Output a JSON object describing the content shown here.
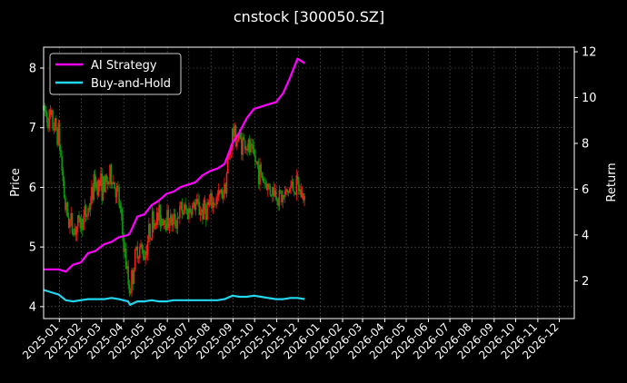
{
  "chart_data": {
    "type": "line",
    "title": "cnstock [300050.SZ]",
    "xlabel": "",
    "ylabel": "Price",
    "ylabel_right": "Return",
    "ylim": [
      3.8,
      8.35
    ],
    "ylim_right": [
      0.35,
      12.2
    ],
    "yticks": [
      4,
      5,
      6,
      7,
      8
    ],
    "yticks_right": [
      2,
      4,
      6,
      8,
      10,
      12
    ],
    "xlim": [
      "2024-12-10",
      "2026-12-22"
    ],
    "xticks": [
      "2025-01",
      "2025-02",
      "2025-03",
      "2025-04",
      "2025-05",
      "2025-06",
      "2025-07",
      "2025-08",
      "2025-09",
      "2025-10",
      "2025-11",
      "2025-12",
      "2026-01",
      "2026-02",
      "2026-03",
      "2026-04",
      "2026-05",
      "2026-06",
      "2026-07",
      "2026-08",
      "2026-09",
      "2026-10",
      "2026-11",
      "2026-12"
    ],
    "grid": true,
    "legend": {
      "placement": "top-left",
      "entries": [
        "AI Strategy",
        "Buy-and-Hold"
      ]
    },
    "colors": {
      "background": "#000000",
      "up": "#ff1a1a",
      "down": "#0a9a0a",
      "ai": "#ff00ff",
      "bh": "#22d8f0",
      "grid": "#555555"
    },
    "price": {
      "name": "",
      "x": [
        "2024-12-10",
        "2024-12-31",
        "2025-01-10",
        "2025-01-20",
        "2025-01-31",
        "2025-02-10",
        "2025-02-20",
        "2025-03-05",
        "2025-03-15",
        "2025-03-25",
        "2025-04-07",
        "2025-04-10",
        "2025-04-20",
        "2025-04-30",
        "2025-05-10",
        "2025-05-20",
        "2025-05-31",
        "2025-06-10",
        "2025-06-20",
        "2025-06-30",
        "2025-07-10",
        "2025-07-20",
        "2025-07-31",
        "2025-08-10",
        "2025-08-20",
        "2025-08-31",
        "2025-09-10",
        "2025-09-20",
        "2025-09-30",
        "2025-10-10",
        "2025-10-20",
        "2025-10-31",
        "2025-11-10",
        "2025-11-20",
        "2025-11-30",
        "2025-12-10"
      ],
      "y": [
        7.3,
        6.9,
        5.6,
        5.3,
        5.4,
        5.6,
        6.1,
        6.0,
        6.2,
        5.8,
        4.4,
        4.3,
        5.0,
        4.9,
        5.4,
        5.5,
        5.5,
        5.4,
        5.6,
        5.6,
        5.7,
        5.6,
        5.7,
        5.8,
        6.0,
        6.9,
        6.8,
        6.7,
        6.5,
        6.2,
        6.0,
        5.9,
        5.8,
        6.0,
        6.0,
        5.8
      ]
    },
    "series": [
      {
        "name": "AI Strategy",
        "x": [
          "2024-12-10",
          "2024-12-31",
          "2025-01-10",
          "2025-01-20",
          "2025-01-31",
          "2025-02-10",
          "2025-02-20",
          "2025-03-05",
          "2025-03-15",
          "2025-03-25",
          "2025-04-07",
          "2025-04-10",
          "2025-04-20",
          "2025-04-30",
          "2025-05-10",
          "2025-05-20",
          "2025-05-31",
          "2025-06-10",
          "2025-06-20",
          "2025-06-30",
          "2025-07-10",
          "2025-07-20",
          "2025-07-31",
          "2025-08-10",
          "2025-08-20",
          "2025-08-31",
          "2025-09-10",
          "2025-09-20",
          "2025-09-30",
          "2025-10-10",
          "2025-10-20",
          "2025-10-31",
          "2025-11-10",
          "2025-11-20",
          "2025-11-30",
          "2025-12-10"
        ],
        "values": [
          2.5,
          2.5,
          2.4,
          2.7,
          2.8,
          3.2,
          3.3,
          3.6,
          3.7,
          3.9,
          4.0,
          4.1,
          4.8,
          4.9,
          5.3,
          5.5,
          5.8,
          5.9,
          6.1,
          6.2,
          6.3,
          6.6,
          6.8,
          6.9,
          7.1,
          8.0,
          8.5,
          9.1,
          9.5,
          9.6,
          9.7,
          9.8,
          10.2,
          10.9,
          11.7,
          11.5
        ]
      },
      {
        "name": "Buy-and-Hold",
        "x": [
          "2024-12-10",
          "2024-12-31",
          "2025-01-10",
          "2025-01-20",
          "2025-01-31",
          "2025-02-10",
          "2025-02-20",
          "2025-03-05",
          "2025-03-15",
          "2025-03-25",
          "2025-04-07",
          "2025-04-10",
          "2025-04-20",
          "2025-04-30",
          "2025-05-10",
          "2025-05-20",
          "2025-05-31",
          "2025-06-10",
          "2025-06-20",
          "2025-06-30",
          "2025-07-10",
          "2025-07-20",
          "2025-07-31",
          "2025-08-10",
          "2025-08-20",
          "2025-08-31",
          "2025-09-10",
          "2025-09-20",
          "2025-09-30",
          "2025-10-10",
          "2025-10-20",
          "2025-10-31",
          "2025-11-10",
          "2025-11-20",
          "2025-11-30",
          "2025-12-10"
        ],
        "values": [
          1.6,
          1.4,
          1.15,
          1.1,
          1.15,
          1.2,
          1.2,
          1.2,
          1.25,
          1.2,
          1.1,
          0.95,
          1.1,
          1.1,
          1.15,
          1.1,
          1.1,
          1.15,
          1.15,
          1.15,
          1.15,
          1.15,
          1.15,
          1.15,
          1.2,
          1.35,
          1.3,
          1.3,
          1.35,
          1.3,
          1.25,
          1.2,
          1.2,
          1.25,
          1.25,
          1.2
        ]
      }
    ]
  }
}
